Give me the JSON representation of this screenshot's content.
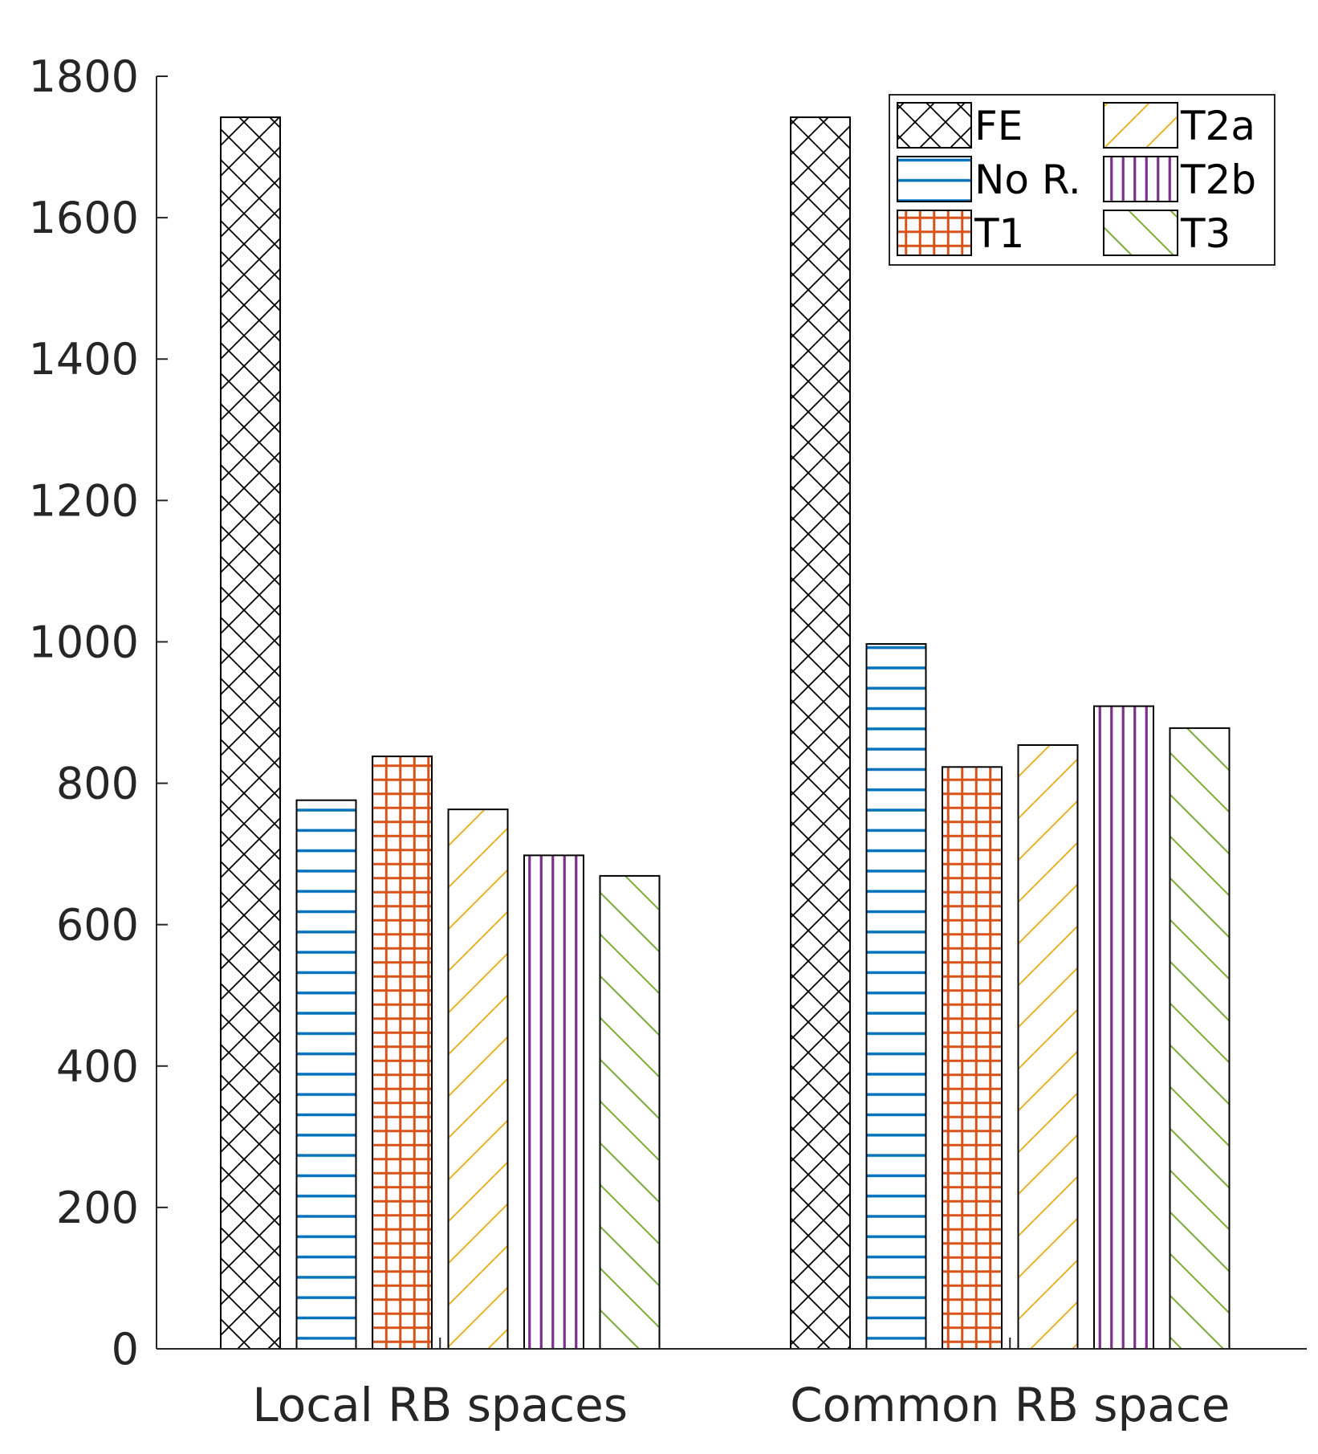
{
  "chart_data": {
    "type": "bar",
    "categories": [
      "Local RB spaces",
      "Common RB space"
    ],
    "series": [
      {
        "name": "FE",
        "values": [
          1742,
          1742
        ],
        "color": "#000000",
        "hatch": "crosshatch"
      },
      {
        "name": "No R.",
        "values": [
          776,
          997
        ],
        "color": "#0072BD",
        "hatch": "horizontal"
      },
      {
        "name": "T1",
        "values": [
          838,
          823
        ],
        "color": "#D95319",
        "hatch": "grid"
      },
      {
        "name": "T2a",
        "values": [
          763,
          854
        ],
        "color": "#EDB120",
        "hatch": "diagonal-up"
      },
      {
        "name": "T2b",
        "values": [
          698,
          909
        ],
        "color": "#7E2F8E",
        "hatch": "vertical"
      },
      {
        "name": "T3",
        "values": [
          669,
          878
        ],
        "color": "#77AC30",
        "hatch": "diagonal-down"
      }
    ],
    "title": "",
    "xlabel": "",
    "ylabel": "",
    "ylim": [
      0,
      1800
    ],
    "yticks": [
      "0",
      "200",
      "400",
      "600",
      "800",
      "1000",
      "1200",
      "1400",
      "1600",
      "1800"
    ],
    "legend_placement": "top-right",
    "legend_columns": 2,
    "grid": false
  }
}
